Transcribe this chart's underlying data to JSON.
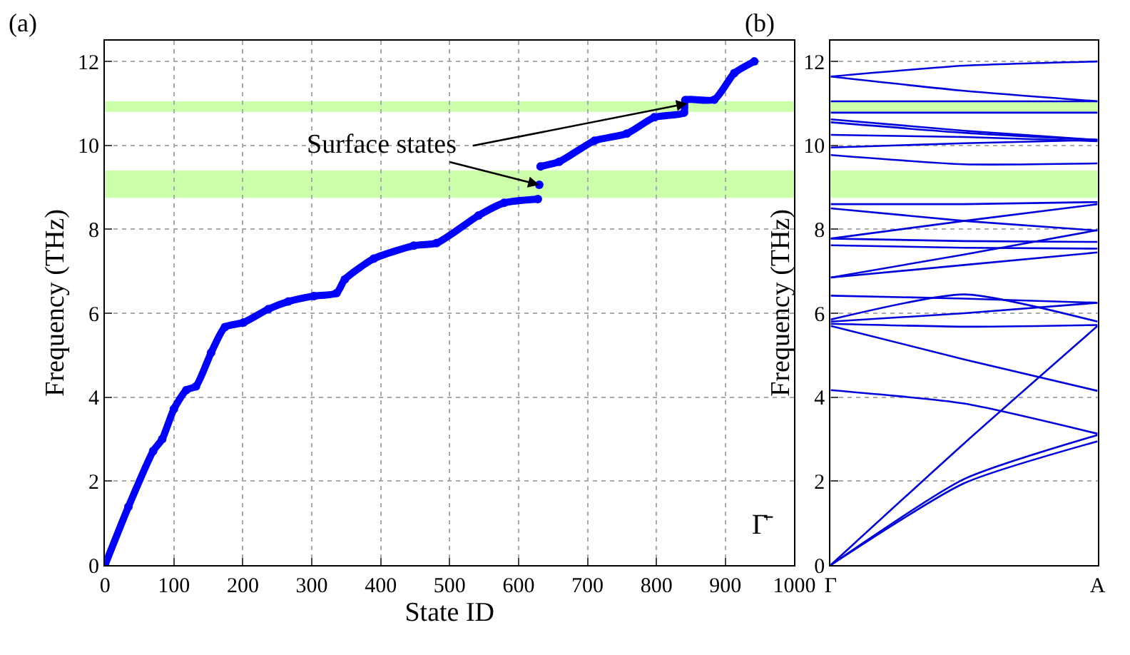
{
  "chart_data": [
    {
      "type": "line",
      "xlabel": "State ID",
      "ylabel": "Frequency (THz)",
      "xlim": [
        0,
        1000
      ],
      "ylim": [
        0,
        12.5
      ],
      "xticks": [
        0,
        100,
        200,
        300,
        400,
        500,
        600,
        700,
        800,
        900,
        1000
      ],
      "yticks": [
        0,
        2,
        4,
        6,
        8,
        10,
        12
      ],
      "grid": true,
      "series": [
        {
          "color": "#0000ff",
          "marker": "circle",
          "x": [
            0,
            34,
            70,
            83,
            100,
            118,
            132,
            154,
            174,
            201,
            237,
            266,
            303,
            336,
            348,
            390,
            448,
            481,
            542,
            579,
            628,
            629,
            630,
            631,
            632,
            659,
            710,
            757,
            797,
            840,
            842,
            884,
            913,
            942
          ],
          "values": [
            0,
            1.39,
            2.72,
            3.0,
            3.72,
            4.17,
            4.26,
            5.06,
            5.67,
            5.78,
            6.1,
            6.28,
            6.41,
            6.48,
            6.81,
            7.3,
            7.61,
            7.67,
            8.33,
            8.63,
            8.72,
            null,
            9.06,
            null,
            9.5,
            9.61,
            10.11,
            10.28,
            10.67,
            10.78,
            11.08,
            11.09,
            11.72,
            12.0
          ]
        }
      ],
      "bands": [
        {
          "axis": "y",
          "from": 8.75,
          "to": 9.4,
          "color": "#ccffaa"
        },
        {
          "axis": "y",
          "from": 10.8,
          "to": 11.05,
          "color": "#ccffaa"
        }
      ],
      "annotations": [
        "(a)",
        "Γ̄",
        {
          "text": "Surface states",
          "x": 630,
          "y": 9.06
        }
      ]
    },
    {
      "type": "line",
      "ylabel": "Frequency (THz)",
      "ylim": [
        0,
        12.5
      ],
      "categories": [
        "Γ",
        null,
        "A"
      ],
      "yticks": [
        0,
        2,
        4,
        6,
        8,
        10,
        12
      ],
      "grid": "y",
      "series": [
        {
          "color": "#0000dd",
          "values": [
            11.64,
            11.9,
            12.0
          ]
        },
        {
          "color": "#0000dd",
          "values": [
            11.64,
            11.3,
            11.05
          ]
        },
        {
          "color": "#0000dd",
          "values": [
            11.05,
            11.05,
            11.05
          ]
        },
        {
          "color": "#0000dd",
          "values": [
            10.78,
            10.78,
            10.78
          ]
        },
        {
          "color": "#0000dd",
          "values": [
            10.62,
            10.35,
            10.13
          ]
        },
        {
          "color": "#0000dd",
          "values": [
            10.55,
            10.3,
            10.13
          ]
        },
        {
          "color": "#0000dd",
          "values": [
            10.25,
            10.2,
            10.1
          ]
        },
        {
          "color": "#0000dd",
          "values": [
            9.95,
            10.05,
            10.13
          ]
        },
        {
          "color": "#0000dd",
          "values": [
            9.77,
            9.55,
            9.57
          ]
        },
        {
          "color": "#0000dd",
          "values": [
            8.6,
            8.6,
            8.65
          ]
        },
        {
          "color": "#0000dd",
          "values": [
            8.5,
            8.2,
            7.97
          ]
        },
        {
          "color": "#0000dd",
          "values": [
            7.78,
            8.2,
            8.6
          ]
        },
        {
          "color": "#0000dd",
          "values": [
            7.78,
            7.72,
            7.7
          ]
        },
        {
          "color": "#0000dd",
          "values": [
            7.62,
            7.56,
            7.54
          ]
        },
        {
          "color": "#0000dd",
          "values": [
            6.85,
            7.4,
            7.98
          ]
        },
        {
          "color": "#0000dd",
          "values": [
            6.85,
            7.15,
            7.45
          ]
        },
        {
          "color": "#0000dd",
          "values": [
            6.42,
            6.35,
            6.25
          ]
        },
        {
          "color": "#0000dd",
          "values": [
            5.85,
            6.45,
            5.8
          ]
        },
        {
          "color": "#0000dd",
          "values": [
            5.75,
            5.68,
            5.72
          ]
        },
        {
          "color": "#0000dd",
          "values": [
            5.8,
            6.0,
            6.25
          ]
        },
        {
          "color": "#0000dd",
          "values": [
            5.7,
            4.9,
            4.15
          ]
        },
        {
          "color": "#0000dd",
          "values": [
            4.17,
            3.85,
            3.13
          ]
        },
        {
          "color": "#0000dd",
          "values": [
            0,
            2.9,
            5.7
          ]
        },
        {
          "color": "#0000dd",
          "values": [
            0,
            2.05,
            3.1
          ]
        },
        {
          "color": "#0000dd",
          "values": [
            0,
            1.95,
            2.95
          ]
        }
      ],
      "bands": [
        {
          "axis": "y",
          "from": 8.75,
          "to": 9.4,
          "color": "#ccffaa"
        },
        {
          "axis": "y",
          "from": 10.8,
          "to": 11.05,
          "color": "#ccffaa"
        }
      ],
      "annotations": [
        "(b)"
      ]
    }
  ]
}
